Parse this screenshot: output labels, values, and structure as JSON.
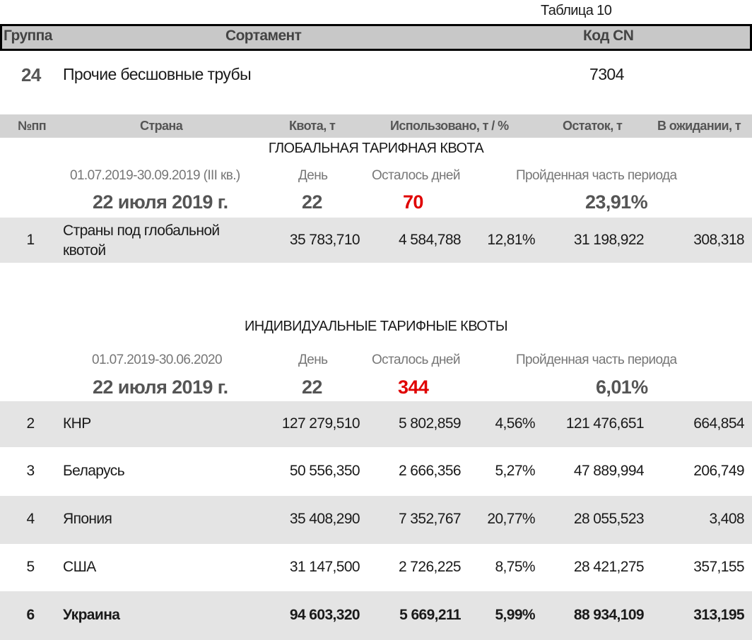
{
  "table_label": "Таблица 10",
  "header": {
    "group": "Группа",
    "assortment": "Сортамент",
    "cn_code": "Код CN"
  },
  "product": {
    "group": "24",
    "name": "Прочие бесшовные трубы",
    "cn_code": "7304"
  },
  "columns": [
    "№пп",
    "Страна",
    "Квота, т",
    "Использовано, т / %",
    "Остаток, т",
    "В ожидании, т"
  ],
  "global": {
    "title": "ГЛОБАЛЬНАЯ ТАРИФНАЯ КВОТА",
    "period": "01.07.2019-30.09.2019 (III кв.)",
    "day_label": "День",
    "days_left_label": "Осталось дней",
    "passed_label": "Пройденная часть периода",
    "date": "22 июля 2019 г.",
    "day": "22",
    "days_left": "70",
    "passed": "23,91%",
    "rows": [
      {
        "n": "1",
        "country": "Страны под глобальной квотой",
        "quota": "35 783,710",
        "used": "4 584,788",
        "pct": "12,81%",
        "remainder": "31 198,922",
        "pending": "308,318"
      }
    ]
  },
  "individual": {
    "title": "ИНДИВИДУАЛЬНЫЕ ТАРИФНЫЕ КВОТЫ",
    "period": "01.07.2019-30.06.2020",
    "day_label": "День",
    "days_left_label": "Осталось дней",
    "passed_label": "Пройденная часть периода",
    "date": "22 июля 2019 г.",
    "day": "22",
    "days_left": "344",
    "passed": "6,01%",
    "rows": [
      {
        "n": "2",
        "country": "КНР",
        "quota": "127 279,510",
        "used": "5 802,859",
        "pct": "4,56%",
        "remainder": "121 476,651",
        "pending": "664,854"
      },
      {
        "n": "3",
        "country": "Беларусь",
        "quota": "50 556,350",
        "used": "2 666,356",
        "pct": "5,27%",
        "remainder": "47 889,994",
        "pending": "206,749"
      },
      {
        "n": "4",
        "country": "Япония",
        "quota": "35 408,290",
        "used": "7 352,767",
        "pct": "20,77%",
        "remainder": "28 055,523",
        "pending": "3,408"
      },
      {
        "n": "5",
        "country": "США",
        "quota": "31 147,500",
        "used": "2 726,225",
        "pct": "8,75%",
        "remainder": "28 421,275",
        "pending": "357,155"
      },
      {
        "n": "6",
        "country": "Украина",
        "quota": "94 603,320",
        "used": "5 669,211",
        "pct": "5,99%",
        "remainder": "88 934,109",
        "pending": "313,195",
        "bold": true
      }
    ]
  },
  "colors": {
    "red": "#e00000",
    "row_gray": "#e4e4e4",
    "header_gray": "#c8c8c8"
  }
}
